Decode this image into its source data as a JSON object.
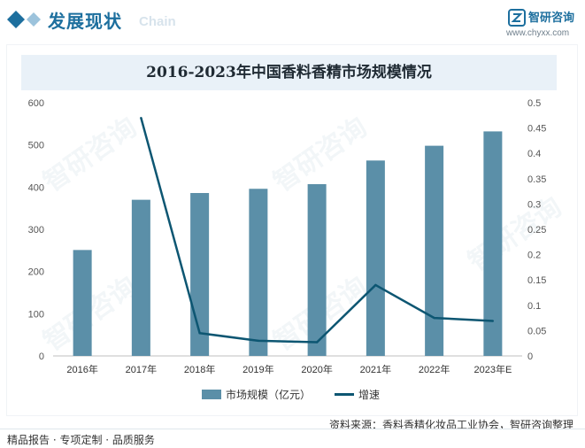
{
  "header": {
    "section_title": "发展现状",
    "section_subtitle": "Chain",
    "brand_name": "智研咨询",
    "brand_url": "www.chyxx.com",
    "accent_color": "#1d6f9e",
    "icon": "diamond-icon"
  },
  "watermark_text": "智研咨询",
  "chart_data": {
    "type": "bar",
    "title": "2016-2023年中国香料香精市场规模情况",
    "categories": [
      "2016年",
      "2017年",
      "2018年",
      "2019年",
      "2020年",
      "2021年",
      "2022年",
      "2023年E"
    ],
    "series": [
      {
        "name": "市场规模（亿元）",
        "type": "bar",
        "axis": "left",
        "color": "#5b8fa8",
        "values": [
          251,
          370,
          386,
          396,
          407,
          463,
          498,
          532
        ]
      },
      {
        "name": "增速",
        "type": "line",
        "axis": "right",
        "color": "#0d5672",
        "values": [
          null,
          0.47,
          0.045,
          0.03,
          0.027,
          0.14,
          0.075,
          0.069
        ]
      }
    ],
    "y_left": {
      "min": 0,
      "max": 600,
      "ticks": [
        "0",
        "100",
        "200",
        "300",
        "400",
        "500",
        "600"
      ]
    },
    "y_right": {
      "min": 0,
      "max": 0.5,
      "ticks": [
        "0",
        "0.05",
        "0.1",
        "0.15",
        "0.2",
        "0.25",
        "0.3",
        "0.35",
        "0.4",
        "0.45",
        "0.5"
      ]
    },
    "grid": false,
    "legend_position": "bottom"
  },
  "source": "资料来源：香料香精化妆品工业协会，智研咨询整理",
  "footer": {
    "services": "精品报告 · 专项定制 · 品质服务"
  }
}
